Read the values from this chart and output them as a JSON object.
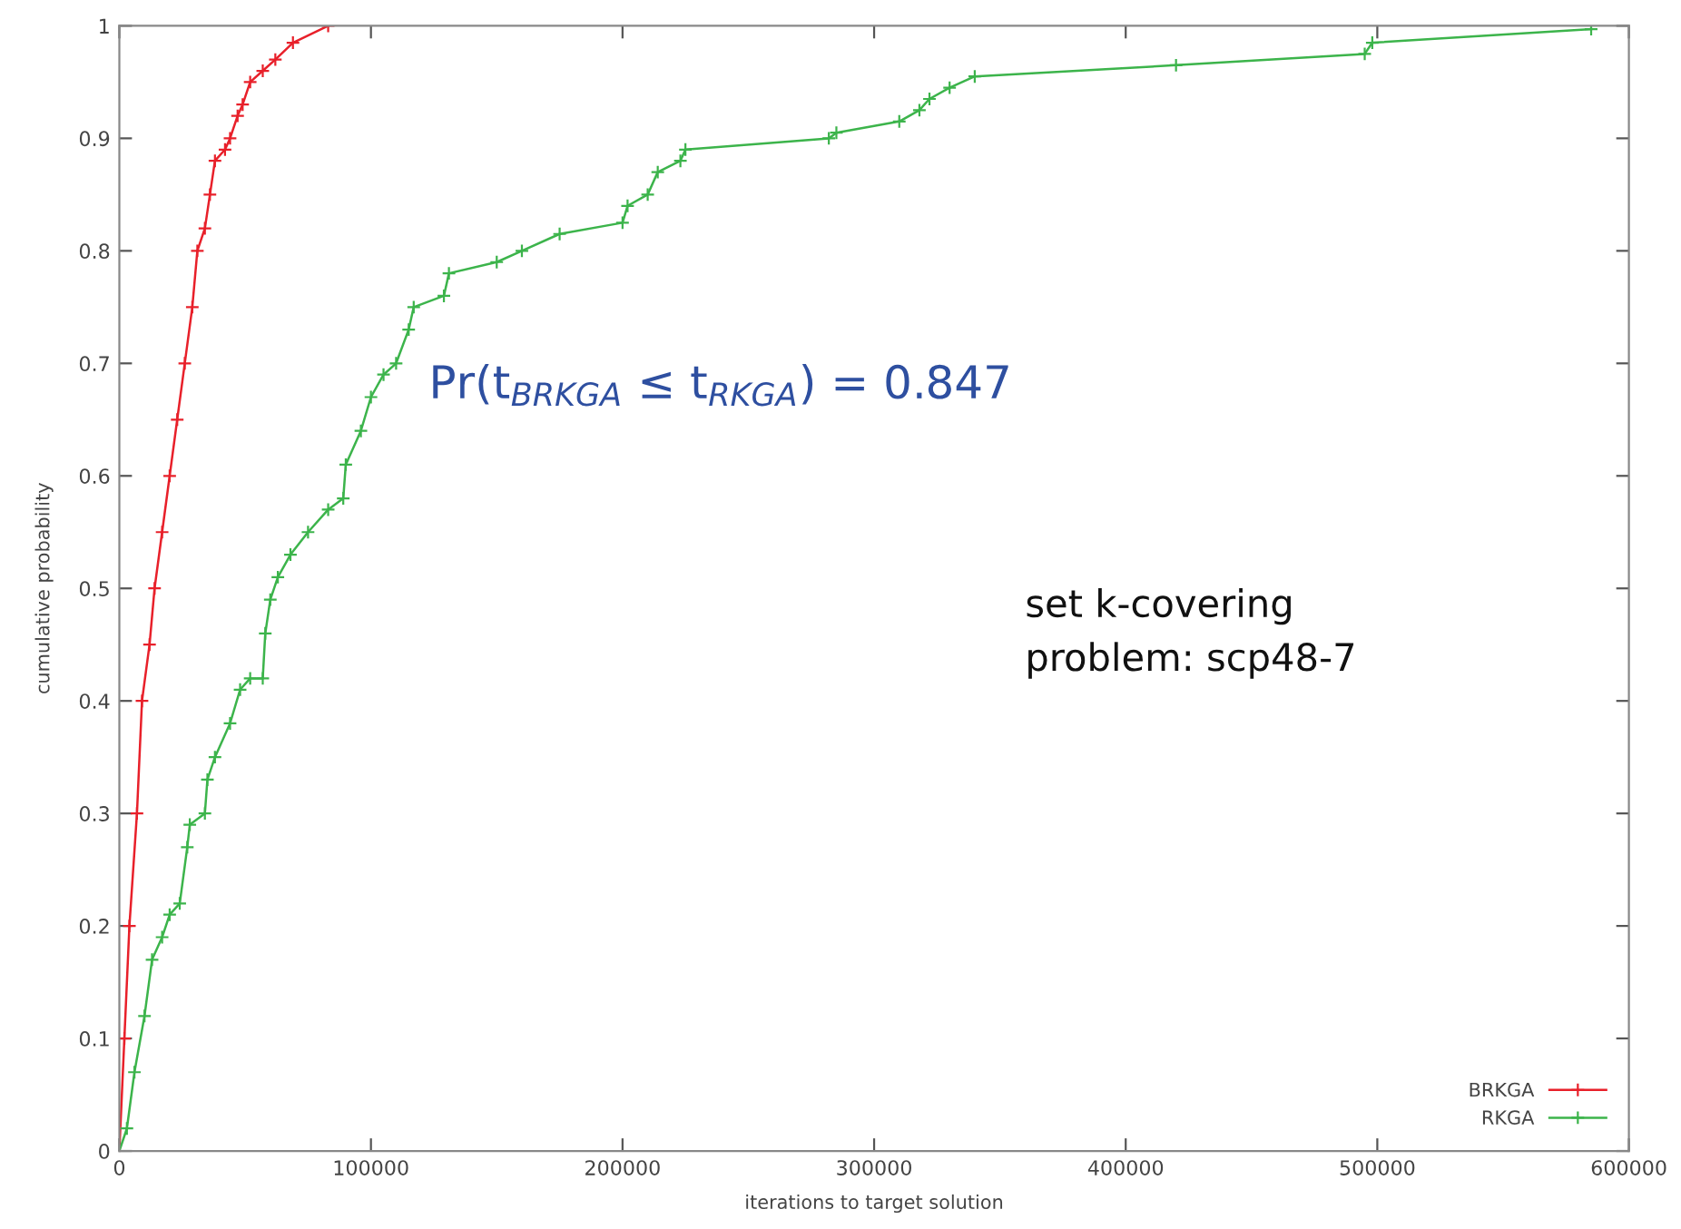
{
  "chart_data": {
    "type": "line",
    "xlabel": "iterations to target solution",
    "ylabel": "cumulative probability",
    "xlim": [
      0,
      600000
    ],
    "ylim": [
      0,
      1
    ],
    "xticks": [
      0,
      100000,
      200000,
      300000,
      400000,
      500000,
      600000
    ],
    "yticks": [
      0,
      0.1,
      0.2,
      0.3,
      0.4,
      0.5,
      0.6,
      0.7,
      0.8,
      0.9,
      1
    ],
    "grid": false,
    "legend": "bottom right",
    "marker": "cross",
    "line_style": "solid",
    "series": [
      {
        "name": "BRKGA",
        "color": "#e8202a",
        "x": [
          0,
          2000,
          4000,
          7000,
          9000,
          12000,
          14000,
          17000,
          20000,
          23000,
          26000,
          29000,
          31000,
          34000,
          36000,
          38000,
          42000,
          44000,
          47000,
          49000,
          52000,
          57000,
          62000,
          69000,
          83000
        ],
        "values": [
          0,
          0.1,
          0.2,
          0.3,
          0.4,
          0.45,
          0.5,
          0.55,
          0.6,
          0.65,
          0.7,
          0.75,
          0.8,
          0.82,
          0.85,
          0.88,
          0.89,
          0.9,
          0.92,
          0.93,
          0.95,
          0.96,
          0.97,
          0.985,
          1.0
        ]
      },
      {
        "name": "RKGA",
        "color": "#3cb44b",
        "x": [
          0,
          3000,
          6000,
          10000,
          13000,
          17000,
          20000,
          24000,
          27000,
          28000,
          34000,
          35000,
          38000,
          44000,
          48000,
          52000,
          57000,
          58000,
          60000,
          63000,
          68000,
          75000,
          83000,
          89000,
          90000,
          96000,
          100000,
          105000,
          110000,
          115000,
          117000,
          129000,
          131000,
          150000,
          160000,
          175000,
          200000,
          202000,
          210000,
          214000,
          223000,
          225000,
          282000,
          285000,
          310000,
          318000,
          322000,
          330000,
          340000,
          420000,
          495000,
          498000,
          585000
        ],
        "values": [
          0,
          0.02,
          0.07,
          0.12,
          0.17,
          0.19,
          0.21,
          0.22,
          0.27,
          0.29,
          0.3,
          0.33,
          0.35,
          0.38,
          0.41,
          0.42,
          0.42,
          0.46,
          0.49,
          0.51,
          0.53,
          0.55,
          0.57,
          0.58,
          0.61,
          0.64,
          0.67,
          0.69,
          0.7,
          0.73,
          0.75,
          0.76,
          0.78,
          0.79,
          0.8,
          0.815,
          0.825,
          0.84,
          0.85,
          0.87,
          0.88,
          0.89,
          0.9,
          0.905,
          0.915,
          0.925,
          0.935,
          0.945,
          0.955,
          0.965,
          0.975,
          0.985,
          0.997
        ]
      }
    ],
    "annotations": [
      "Pr(t$_{BRKGA}$ ≤ t$_{RKGA}$) = 0.847",
      "set k-covering\nproblem: scp48-7"
    ]
  }
}
